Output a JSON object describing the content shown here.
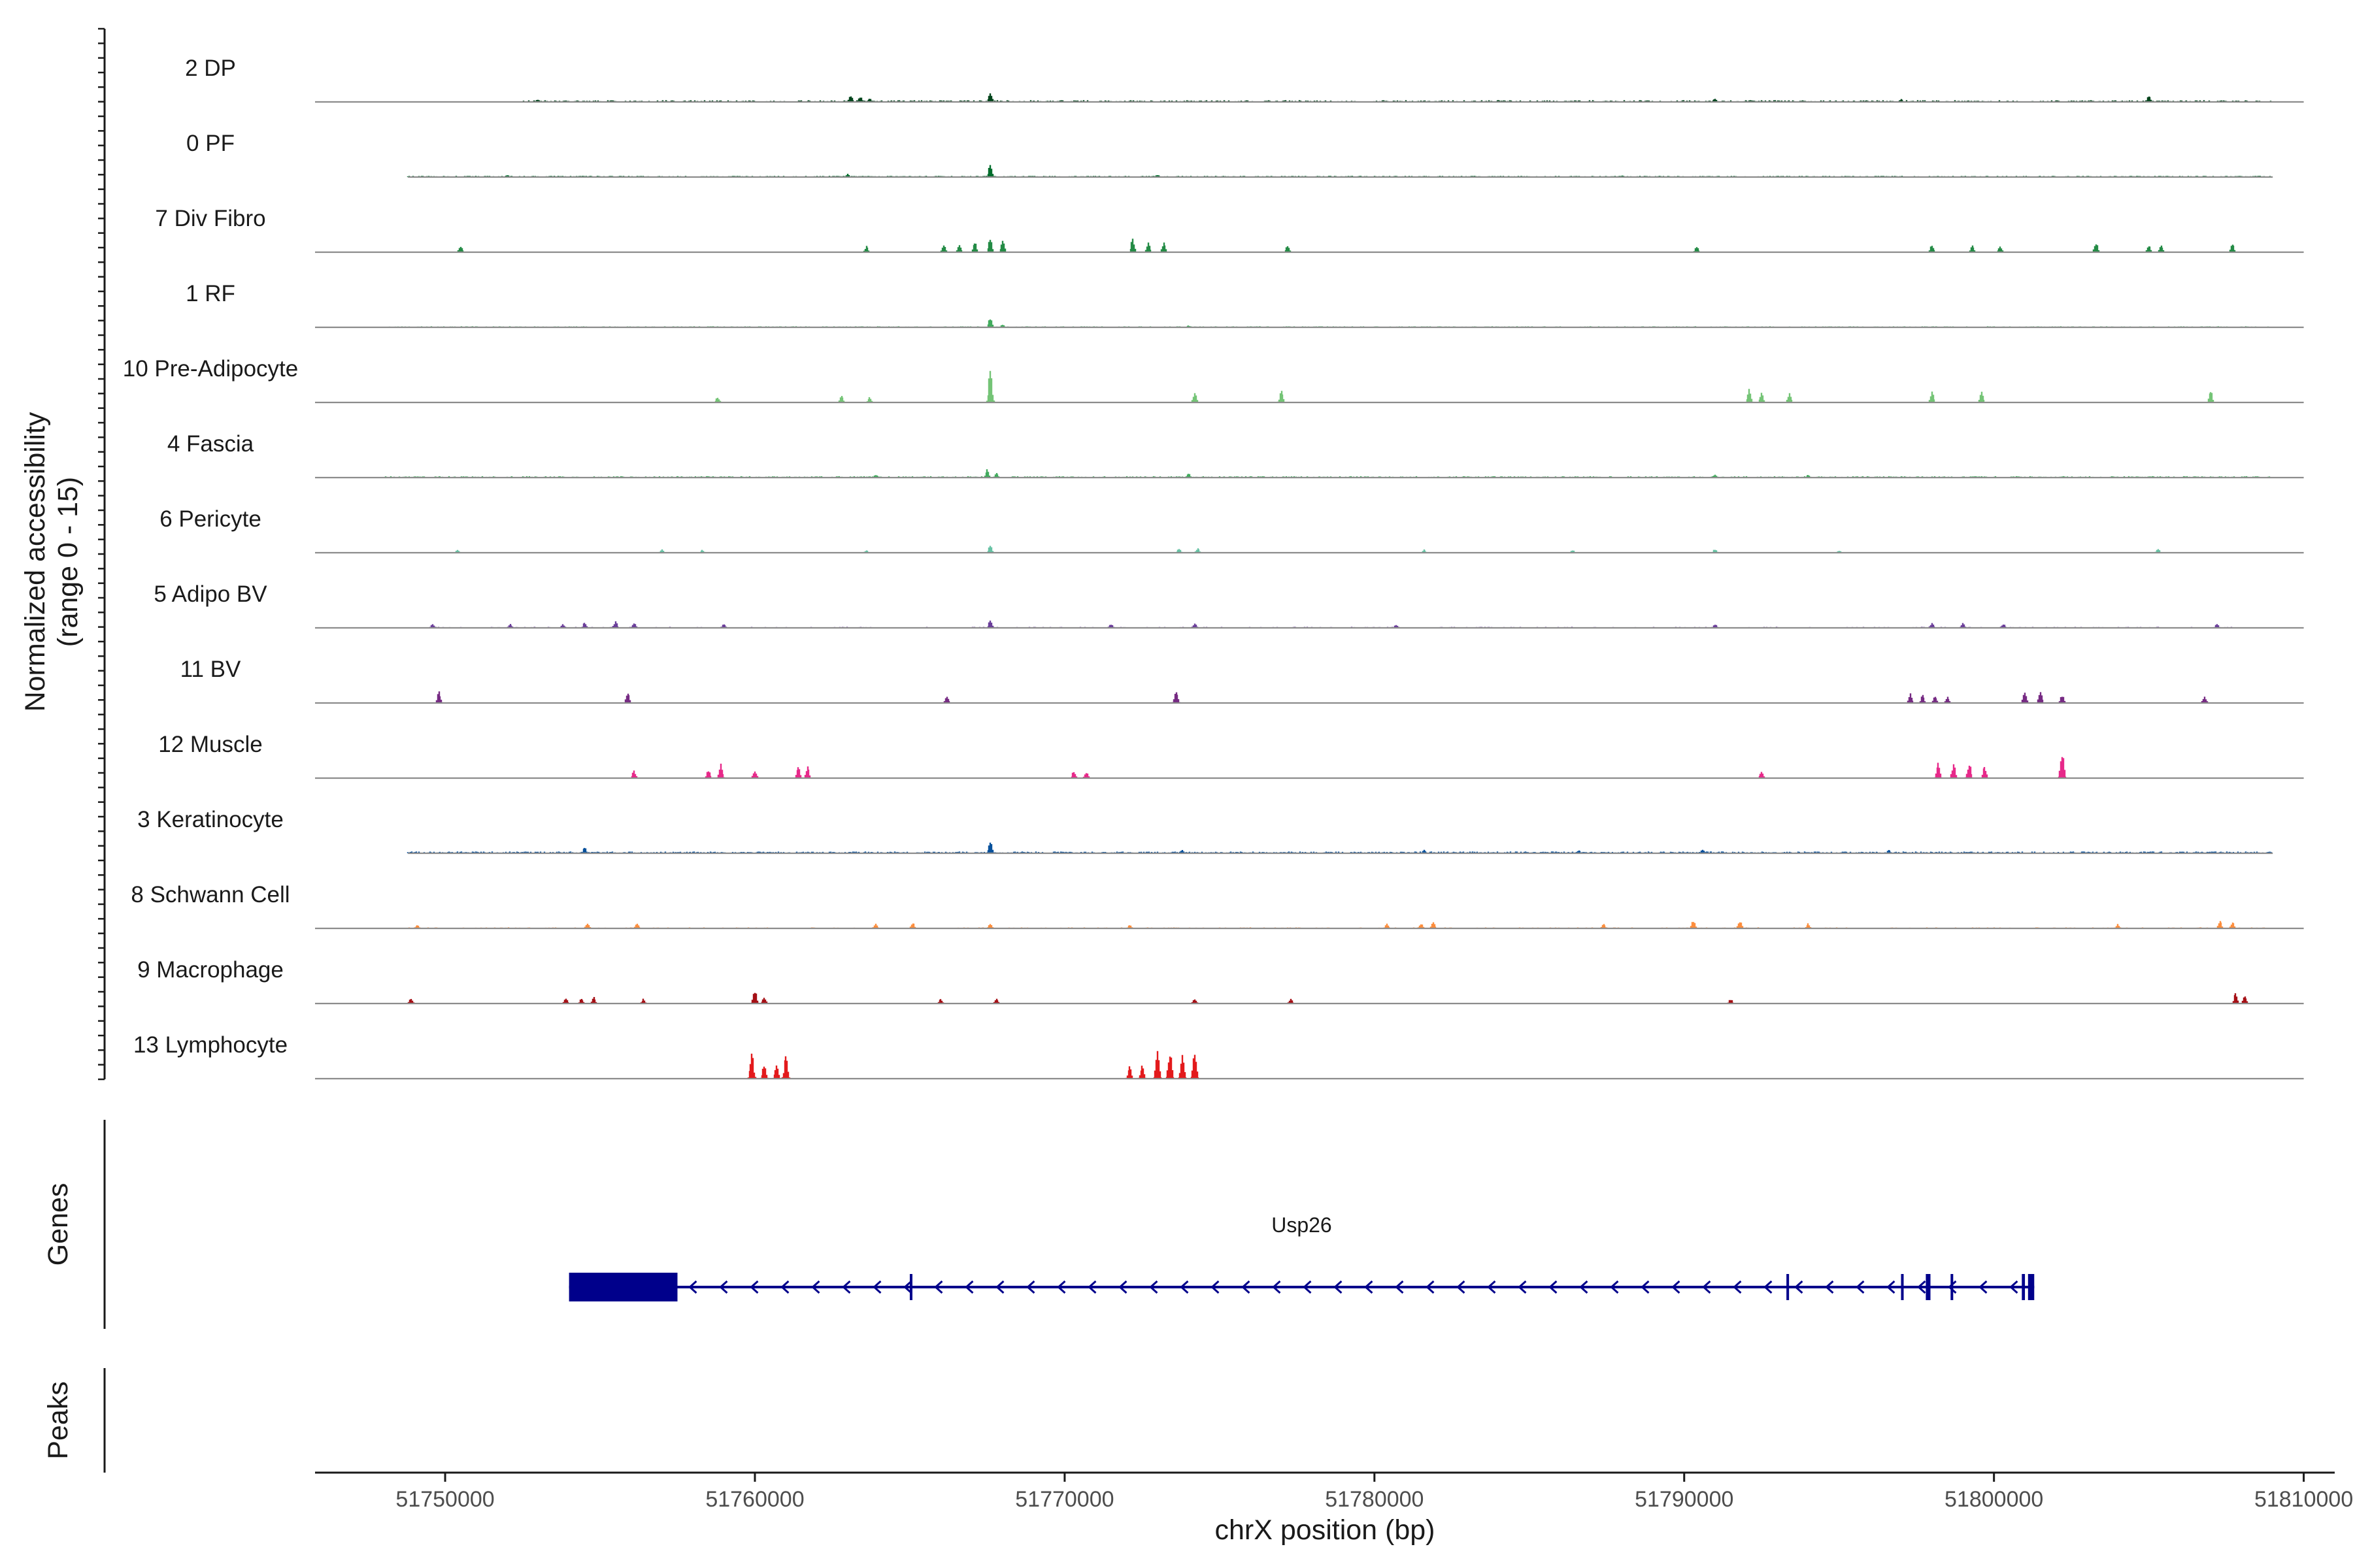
{
  "chart_data": {
    "type": "coverage",
    "y_axis_title_line1": "Normalized accessibility",
    "y_axis_title_line2": "(range 0 - 15)",
    "y_range": [
      0,
      15
    ],
    "x_axis_title": "chrX position (bp)",
    "x_range": [
      51745800,
      51811000
    ],
    "x_ticks": [
      {
        "value": 51750000,
        "label": "51750000"
      },
      {
        "value": 51760000,
        "label": "51760000"
      },
      {
        "value": 51770000,
        "label": "51770000"
      },
      {
        "value": 51780000,
        "label": "51780000"
      },
      {
        "value": 51790000,
        "label": "51790000"
      },
      {
        "value": 51800000,
        "label": "51800000"
      },
      {
        "value": 51810000,
        "label": "51810000"
      }
    ],
    "tracks": [
      {
        "label": "2 DP",
        "color": "#00441b",
        "data_start": 51745800,
        "data_end": 51810000,
        "noise": {
          "start": 51752500,
          "end": 51809000,
          "level": 0.25,
          "density": 0.5
        },
        "peaks": [
          [
            51753000,
            0.6
          ],
          [
            51763100,
            1.6
          ],
          [
            51763400,
            1.2
          ],
          [
            51763700,
            0.9
          ],
          [
            51767600,
            2.2
          ],
          [
            51784000,
            0.5
          ],
          [
            51791000,
            0.7
          ],
          [
            51797000,
            0.6
          ],
          [
            51805000,
            1.5
          ]
        ]
      },
      {
        "label": "0 PF",
        "color": "#006d2c",
        "data_start": 51748800,
        "data_end": 51809000,
        "noise": {
          "start": 51748800,
          "end": 51809000,
          "level": 0.18,
          "density": 0.7
        },
        "peaks": [
          [
            51752000,
            0.5
          ],
          [
            51763000,
            0.7
          ],
          [
            51767600,
            2.6
          ],
          [
            51773000,
            0.5
          ],
          [
            51788000,
            0.4
          ]
        ]
      },
      {
        "label": "7 Div Fibro",
        "color": "#238b45",
        "data_start": 51745800,
        "data_end": 51810000,
        "noise": {
          "start": 51745800,
          "end": 51745800,
          "level": 0,
          "density": 0
        },
        "peaks": [
          [
            51750500,
            1.5
          ],
          [
            51763600,
            1.3
          ],
          [
            51766100,
            1.6
          ],
          [
            51766600,
            1.8
          ],
          [
            51767100,
            2.4
          ],
          [
            51767600,
            3.2
          ],
          [
            51768000,
            2.6
          ],
          [
            51772200,
            2.9
          ],
          [
            51772700,
            2.1
          ],
          [
            51773200,
            2.3
          ],
          [
            51777200,
            1.4
          ],
          [
            51790400,
            1.2
          ],
          [
            51798000,
            1.6
          ],
          [
            51799300,
            1.4
          ],
          [
            51800200,
            1.3
          ],
          [
            51803300,
            2.0
          ],
          [
            51805000,
            1.6
          ],
          [
            51805400,
            1.5
          ],
          [
            51807700,
            2.1
          ]
        ]
      },
      {
        "label": "1 RF",
        "color": "#41ab5d",
        "data_start": 51745800,
        "data_end": 51810000,
        "noise": {
          "start": 51748000,
          "end": 51809000,
          "level": 0.15,
          "density": 0.7
        },
        "peaks": [
          [
            51767600,
            2.1
          ],
          [
            51768000,
            0.6
          ],
          [
            51774000,
            0.4
          ]
        ]
      },
      {
        "label": "10 Pre-Adipocyte",
        "color": "#74c476",
        "data_start": 51745800,
        "data_end": 51810000,
        "noise": {
          "start": 51745800,
          "end": 51745800,
          "level": 0,
          "density": 0
        },
        "peaks": [
          [
            51758800,
            1.2
          ],
          [
            51762800,
            1.5
          ],
          [
            51763700,
            1.2
          ],
          [
            51767600,
            6.8
          ],
          [
            51774200,
            2.1
          ],
          [
            51777000,
            2.6
          ],
          [
            51792100,
            2.9
          ],
          [
            51792500,
            2.1
          ],
          [
            51793400,
            2.0
          ],
          [
            51798000,
            2.3
          ],
          [
            51799600,
            2.6
          ],
          [
            51807000,
            2.7
          ]
        ]
      },
      {
        "label": "4 Fascia",
        "color": "#41ab5d",
        "data_start": 51745800,
        "data_end": 51810000,
        "noise": {
          "start": 51748000,
          "end": 51809000,
          "level": 0.2,
          "density": 0.6
        },
        "peaks": [
          [
            51763900,
            0.7
          ],
          [
            51767500,
            1.9
          ],
          [
            51767800,
            1.0
          ],
          [
            51774000,
            1.0
          ],
          [
            51791000,
            0.6
          ],
          [
            51794000,
            0.6
          ]
        ]
      },
      {
        "label": "6 Pericyte",
        "color": "#66c2a4",
        "data_start": 51745800,
        "data_end": 51810000,
        "noise": {
          "start": 51750000,
          "end": 51806000,
          "level": 0.1,
          "density": 0.25
        },
        "peaks": [
          [
            51750400,
            0.6
          ],
          [
            51757000,
            0.7
          ],
          [
            51758300,
            0.6
          ],
          [
            51763600,
            0.6
          ],
          [
            51767600,
            1.6
          ],
          [
            51773700,
            0.9
          ],
          [
            51774300,
            1.0
          ],
          [
            51781600,
            0.7
          ],
          [
            51786400,
            0.6
          ],
          [
            51791000,
            0.8
          ],
          [
            51795000,
            0.5
          ],
          [
            51805300,
            0.8
          ]
        ]
      },
      {
        "label": "5 Adipo BV",
        "color": "#6a3d9a",
        "data_start": 51745800,
        "data_end": 51810000,
        "noise": {
          "start": 51749500,
          "end": 51808000,
          "level": 0.15,
          "density": 0.3
        },
        "peaks": [
          [
            51749600,
            0.8
          ],
          [
            51752100,
            1.0
          ],
          [
            51753800,
            0.8
          ],
          [
            51754500,
            1.2
          ],
          [
            51755500,
            1.4
          ],
          [
            51756100,
            1.1
          ],
          [
            51759000,
            1.0
          ],
          [
            51767600,
            1.6
          ],
          [
            51771500,
            0.8
          ],
          [
            51774200,
            0.9
          ],
          [
            51780700,
            0.7
          ],
          [
            51791000,
            0.8
          ],
          [
            51798000,
            1.1
          ],
          [
            51799000,
            1.0
          ],
          [
            51800300,
            0.9
          ],
          [
            51807200,
            0.8
          ]
        ]
      },
      {
        "label": "11 BV",
        "color": "#762a83",
        "data_start": 51745800,
        "data_end": 51810000,
        "noise": {
          "start": 51745800,
          "end": 51745800,
          "level": 0,
          "density": 0
        },
        "peaks": [
          [
            51749800,
            2.6
          ],
          [
            51755900,
            2.7
          ],
          [
            51766200,
            1.5
          ],
          [
            51773600,
            2.8
          ],
          [
            51797300,
            2.0
          ],
          [
            51797700,
            1.8
          ],
          [
            51798100,
            1.6
          ],
          [
            51798500,
            1.5
          ],
          [
            51801000,
            2.4
          ],
          [
            51801500,
            2.6
          ],
          [
            51802200,
            1.7
          ],
          [
            51806800,
            1.4
          ]
        ]
      },
      {
        "label": "12 Muscle",
        "color": "#e7298a",
        "data_start": 51745800,
        "data_end": 51810000,
        "noise": {
          "start": 51745800,
          "end": 51745800,
          "level": 0,
          "density": 0
        },
        "peaks": [
          [
            51756100,
            1.6
          ],
          [
            51758500,
            1.8
          ],
          [
            51758900,
            3.2
          ],
          [
            51760000,
            1.7
          ],
          [
            51761400,
            2.8
          ],
          [
            51761700,
            2.5
          ],
          [
            51770300,
            1.6
          ],
          [
            51770700,
            1.4
          ],
          [
            51792500,
            1.7
          ],
          [
            51798200,
            3.4
          ],
          [
            51798700,
            3.0
          ],
          [
            51799200,
            3.2
          ],
          [
            51799700,
            2.8
          ],
          [
            51802200,
            6.1
          ]
        ]
      },
      {
        "label": "3 Keratinocyte",
        "color": "#08519c",
        "data_start": 51748800,
        "data_end": 51809000,
        "noise": {
          "start": 51748800,
          "end": 51809000,
          "level": 0.25,
          "density": 0.7
        },
        "peaks": [
          [
            51754500,
            1.4
          ],
          [
            51767600,
            2.8
          ],
          [
            51773800,
            0.7
          ],
          [
            51781600,
            0.8
          ],
          [
            51786600,
            0.7
          ],
          [
            51790600,
            0.9
          ],
          [
            51796600,
            0.8
          ]
        ]
      },
      {
        "label": "8 Schwann Cell",
        "color": "#fd8d3c",
        "data_start": 51745800,
        "data_end": 51810000,
        "noise": {
          "start": 51748800,
          "end": 51808800,
          "level": 0.15,
          "density": 0.3
        },
        "peaks": [
          [
            51749100,
            0.8
          ],
          [
            51754600,
            1.2
          ],
          [
            51756200,
            1.2
          ],
          [
            51763900,
            1.1
          ],
          [
            51765100,
            1.4
          ],
          [
            51767600,
            1.1
          ],
          [
            51772100,
            0.8
          ],
          [
            51780400,
            1.0
          ],
          [
            51781500,
            1.1
          ],
          [
            51781900,
            1.5
          ],
          [
            51787400,
            1.0
          ],
          [
            51790300,
            1.8
          ],
          [
            51791800,
            1.7
          ],
          [
            51794000,
            1.2
          ],
          [
            51804000,
            0.9
          ],
          [
            51807300,
            1.8
          ],
          [
            51807700,
            1.5
          ]
        ]
      },
      {
        "label": "9 Macrophage",
        "color": "#a50f15",
        "data_start": 51745800,
        "data_end": 51810000,
        "noise": {
          "start": 51745800,
          "end": 51745800,
          "level": 0,
          "density": 0
        },
        "peaks": [
          [
            51748900,
            1.1
          ],
          [
            51753900,
            1.3
          ],
          [
            51754400,
            1.1
          ],
          [
            51754800,
            1.5
          ],
          [
            51756400,
            1.0
          ],
          [
            51760000,
            2.9
          ],
          [
            51760300,
            1.5
          ],
          [
            51766000,
            1.1
          ],
          [
            51767800,
            1.2
          ],
          [
            51774200,
            1.0
          ],
          [
            51777300,
            1.0
          ],
          [
            51791500,
            1.0
          ],
          [
            51807800,
            2.5
          ],
          [
            51808100,
            2.0
          ]
        ]
      },
      {
        "label": "13 Lymphocyte",
        "color": "#e31a1c",
        "data_start": 51745800,
        "data_end": 51810000,
        "noise": {
          "start": 51745800,
          "end": 51745800,
          "level": 0,
          "density": 0
        },
        "peaks": [
          [
            51759900,
            5.8
          ],
          [
            51760300,
            3.0
          ],
          [
            51760700,
            3.4
          ],
          [
            51761000,
            5.6
          ],
          [
            51772100,
            3.0
          ],
          [
            51772500,
            3.2
          ],
          [
            51773000,
            5.8
          ],
          [
            51773400,
            6.1
          ],
          [
            51773800,
            5.5
          ],
          [
            51774200,
            6.1
          ]
        ]
      }
    ],
    "genes_panel_title": "Genes",
    "peaks_panel_title": "Peaks",
    "gene": {
      "name": "Usp26",
      "strand": "-",
      "start": 51754000,
      "end": 51801300,
      "color": "#00008b",
      "exons": [
        [
          51754000,
          51757500
        ],
        [
          51765000,
          51765080
        ],
        [
          51793300,
          51793380
        ],
        [
          51797000,
          51797080
        ],
        [
          51797800,
          51797950
        ],
        [
          51798600,
          51798680
        ],
        [
          51800900,
          51801000
        ],
        [
          51801100,
          51801300
        ]
      ]
    }
  }
}
